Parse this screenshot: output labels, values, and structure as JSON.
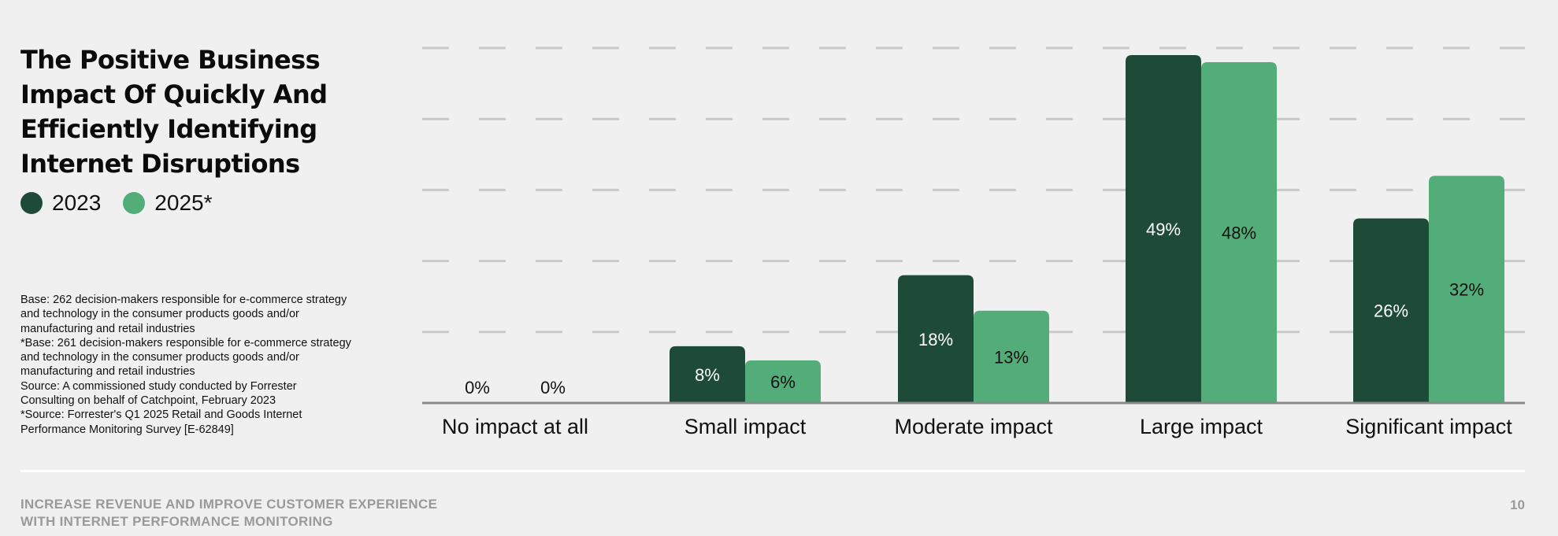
{
  "title_lines": [
    "The Positive Business",
    "Impact Of Quickly And",
    "Efficiently Identifying",
    "Internet Disruptions"
  ],
  "notes": [
    "Base: 262 decision-makers responsible for e-commerce strategy and technology in the consumer products goods and/or manufacturing and retail industries",
    "*Base: 261 decision-makers responsible for e-commerce strategy and technology in the consumer products goods and/or manufacturing and retail industries",
    "Source: A commissioned study conducted by Forrester Consulting on behalf of Catchpoint, February 2023",
    "*Source: Forrester's Q1 2025 Retail and Goods Internet Performance Monitoring Survey [E-62849]"
  ],
  "footer_lines": [
    "INCREASE REVENUE AND IMPROVE CUSTOMER EXPERIENCE",
    "WITH INTERNET PERFORMANCE MONITORING"
  ],
  "page_number": "10",
  "chart_data": {
    "type": "bar",
    "categories": [
      "No impact at all",
      "Small impact",
      "Moderate impact",
      "Large impact",
      "Significant impact"
    ],
    "series": [
      {
        "name": "2023",
        "color": "#1e4b38",
        "values": [
          0,
          8,
          18,
          49,
          26
        ],
        "labels": [
          "0%",
          "8%",
          "18%",
          "49%",
          "26%"
        ]
      },
      {
        "name": "2025*",
        "color": "#53ad78",
        "values": [
          0,
          6,
          13,
          48,
          32
        ],
        "labels": [
          "0%",
          "6%",
          "13%",
          "48%",
          "32%"
        ]
      }
    ],
    "ylim": [
      0,
      50
    ],
    "grid": true,
    "legend": "top-left"
  }
}
